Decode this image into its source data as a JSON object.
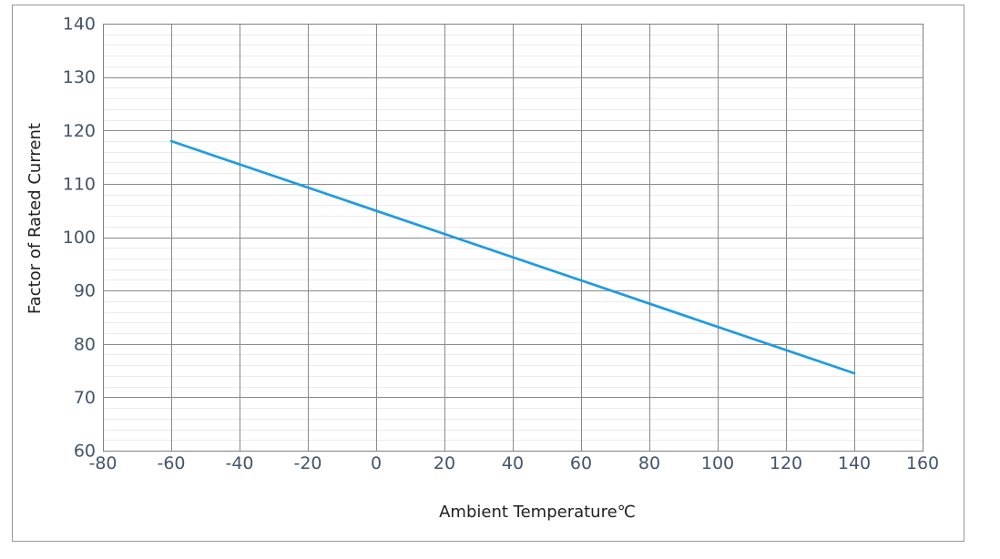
{
  "figure": {
    "x_axis_title": "Ambient Temperature℃",
    "y_axis_title": "Factor of Rated Current"
  },
  "chart_data": {
    "type": "line",
    "title": "",
    "xlabel": "Ambient Temperature℃",
    "ylabel": "Factor of Rated Current",
    "xlim": [
      -80,
      160
    ],
    "ylim": [
      60,
      140
    ],
    "x_ticks": [
      -80,
      -60,
      -40,
      -20,
      0,
      20,
      40,
      60,
      80,
      100,
      120,
      140,
      160
    ],
    "y_ticks": [
      60,
      70,
      80,
      90,
      100,
      110,
      120,
      130,
      140
    ],
    "x_major_step": 20,
    "y_major_step": 10,
    "y_minor_step": 2,
    "grid": {
      "x_major": true,
      "y_major": true,
      "y_minor": true,
      "x_minor": false
    },
    "legend_position": "none",
    "series": [
      {
        "name": "derating-line",
        "shape": "straight-segment",
        "points": [
          {
            "x": -60,
            "y": 118
          },
          {
            "x": 140,
            "y": 74.5
          }
        ]
      }
    ],
    "colors": {
      "line": "#1F9CE0",
      "major_grid": "#8A8A8A",
      "minor_grid": "#EBEBEB",
      "plot_border": "#7F7F7F",
      "outer_frame": "#979797",
      "tick_label": "#44546A",
      "axis_title": "#212121",
      "background": "#FFFFFF"
    }
  }
}
